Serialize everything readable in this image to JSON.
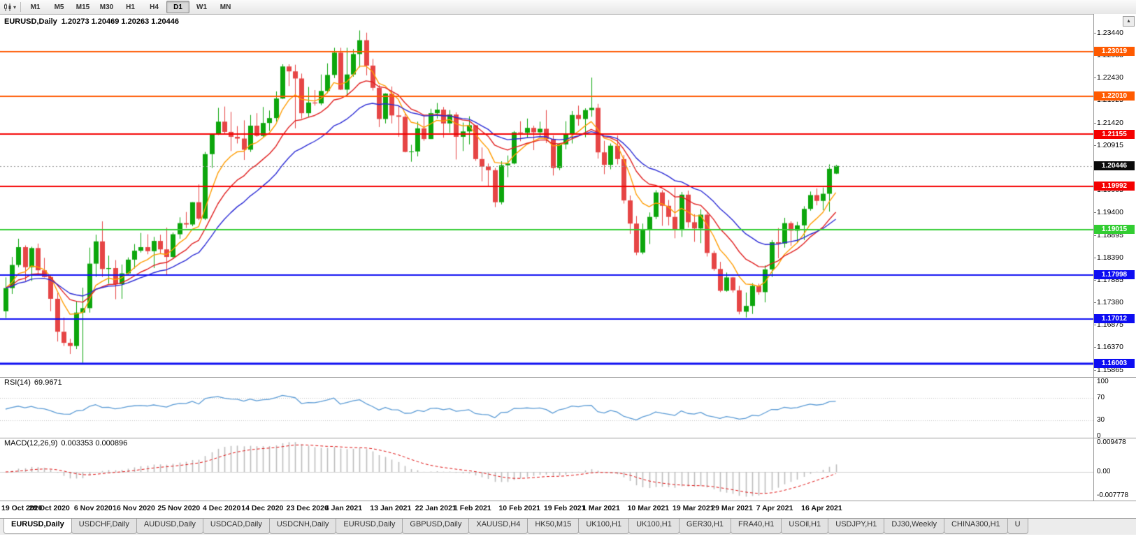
{
  "icons": {
    "dropdown": "▾",
    "scroll_up": "▴"
  },
  "toolbar": {
    "chart_icon": "candlestick-chart-icon",
    "timeframes": [
      "M1",
      "M5",
      "M15",
      "M30",
      "H1",
      "H4",
      "D1",
      "W1",
      "MN"
    ],
    "active_timeframe": "D1"
  },
  "main_chart": {
    "title": "EURUSD,Daily",
    "ohlc_text": "1.20273 1.20469 1.20263 1.20446",
    "current_price": {
      "text": "1.20446",
      "value": 1.20446,
      "box_color": "#0a0a0a"
    },
    "levels": [
      {
        "text": "1.23019",
        "value": 1.23019,
        "color": "#FF5A00",
        "width": 2
      },
      {
        "text": "1.22010",
        "value": 1.2201,
        "color": "#FF5A00",
        "width": 2
      },
      {
        "text": "1.21155",
        "value": 1.21155,
        "color": "#F40000",
        "width": 2
      },
      {
        "text": "1.19992",
        "value": 1.19992,
        "color": "#F40000",
        "width": 2
      },
      {
        "text": "1.19015",
        "value": 1.19015,
        "color": "#32CD32",
        "width": 2
      },
      {
        "text": "1.17998",
        "value": 1.17998,
        "color": "#0D0DF2",
        "width": 2
      },
      {
        "text": "1.17012",
        "value": 1.17012,
        "color": "#0D0DF2",
        "width": 2
      },
      {
        "text": "1.16003",
        "value": 1.16003,
        "color": "#0D0DF2",
        "width": 3
      }
    ],
    "y_ticks": [
      "1.23440",
      "1.22935",
      "1.22430",
      "1.21925",
      "1.21420",
      "1.20915",
      "1.20410",
      "1.19905",
      "1.19400",
      "1.18895",
      "1.18390",
      "1.17885",
      "1.17380",
      "1.16875",
      "1.16370",
      "1.15865"
    ],
    "x_labels": [
      {
        "text": "19 Oct 2020",
        "i": 0
      },
      {
        "text": "28 Oct 2020",
        "i": 7
      },
      {
        "text": "6 Nov 2020",
        "i": 14
      },
      {
        "text": "16 Nov 2020",
        "i": 20
      },
      {
        "text": "25 Nov 2020",
        "i": 27
      },
      {
        "text": "4 Dec 2020",
        "i": 34
      },
      {
        "text": "14 Dec 2020",
        "i": 40
      },
      {
        "text": "23 Dec 2020",
        "i": 47
      },
      {
        "text": "4 Jan 2021",
        "i": 53
      },
      {
        "text": "13 Jan 2021",
        "i": 60
      },
      {
        "text": "22 Jan 2021",
        "i": 67
      },
      {
        "text": "1 Feb 2021",
        "i": 73
      },
      {
        "text": "10 Feb 2021",
        "i": 80
      },
      {
        "text": "19 Feb 2021",
        "i": 87
      },
      {
        "text": "1 Mar 2021",
        "i": 93
      },
      {
        "text": "10 Mar 2021",
        "i": 100
      },
      {
        "text": "19 Mar 2021",
        "i": 107
      },
      {
        "text": "29 Mar 2021",
        "i": 113
      },
      {
        "text": "7 Apr 2021",
        "i": 120
      },
      {
        "text": "16 Apr 2021",
        "i": 127
      }
    ]
  },
  "rsi_panel": {
    "name": "RSI(14)",
    "value": "69.9671",
    "axis": [
      "100",
      "70",
      "30",
      "0"
    ],
    "level_lines": [
      70,
      30
    ],
    "line_color": "#5B9BD5"
  },
  "macd_panel": {
    "name": "MACD(12,26,9)",
    "values": "0.003353 0.000896",
    "axis": [
      {
        "text": "0.009478",
        "v": 0.009478
      },
      {
        "text": "0.00",
        "v": 0
      },
      {
        "text": "-0.007778",
        "v": -0.007778
      }
    ],
    "histogram_color": "#BDBDBD",
    "signal_color": "#DE1111"
  },
  "tabs": [
    "EURUSD,Daily",
    "USDCHF,Daily",
    "AUDUSD,Daily",
    "USDCAD,Daily",
    "USDCNH,Daily",
    "EURUSD,Daily",
    "GBPUSD,Daily",
    "XAUUSD,H4",
    "HK50,M15",
    "UK100,H1",
    "UK100,H1",
    "GER30,H1",
    "FRA40,H1",
    "USOil,H1",
    "USDJPY,H1",
    "DJ30,Weekly",
    "CHINA300,H1",
    "U"
  ],
  "active_tab": 0,
  "chart_data": {
    "type": "candlestick",
    "symbol": "EURUSD",
    "timeframe": "Daily",
    "ohlc_format": [
      "open",
      "high",
      "low",
      "close"
    ],
    "visible_price_range": [
      1.1575,
      1.239
    ],
    "up_color": "#0CA60C",
    "down_color": "#E64545",
    "moving_averages": [
      {
        "type": "ema",
        "period": 7,
        "color": "#FF9C00"
      },
      {
        "type": "ema",
        "period": 14,
        "color": "#E02020"
      },
      {
        "type": "ema",
        "period": 24,
        "color": "#2B2BD5"
      }
    ],
    "indicators": {
      "rsi_period": 14,
      "macd_params": [
        12,
        26,
        9
      ]
    },
    "candles": [
      [
        1.1718,
        1.1794,
        1.1703,
        1.177
      ],
      [
        1.177,
        1.184,
        1.1757,
        1.1822
      ],
      [
        1.1822,
        1.1881,
        1.1817,
        1.1862
      ],
      [
        1.1862,
        1.1866,
        1.1786,
        1.1817
      ],
      [
        1.1817,
        1.1863,
        1.1786,
        1.186
      ],
      [
        1.186,
        1.187,
        1.18,
        1.181
      ],
      [
        1.181,
        1.1838,
        1.1794,
        1.1795
      ],
      [
        1.1795,
        1.18,
        1.1718,
        1.1746
      ],
      [
        1.1746,
        1.1759,
        1.165,
        1.1672
      ],
      [
        1.1672,
        1.1704,
        1.164,
        1.1647
      ],
      [
        1.1647,
        1.1656,
        1.1622,
        1.164
      ],
      [
        1.164,
        1.174,
        1.1633,
        1.1715
      ],
      [
        1.1715,
        1.1771,
        1.1602,
        1.1725
      ],
      [
        1.1725,
        1.1861,
        1.1715,
        1.1825
      ],
      [
        1.1825,
        1.189,
        1.1795,
        1.1875
      ],
      [
        1.1875,
        1.192,
        1.1795,
        1.1813
      ],
      [
        1.1813,
        1.1843,
        1.178,
        1.1815
      ],
      [
        1.1815,
        1.1833,
        1.1745,
        1.1779
      ],
      [
        1.1779,
        1.1823,
        1.1746,
        1.1803
      ],
      [
        1.1803,
        1.1839,
        1.1799,
        1.1834
      ],
      [
        1.1834,
        1.1869,
        1.1814,
        1.1854
      ],
      [
        1.1854,
        1.1894,
        1.185,
        1.1862
      ],
      [
        1.1862,
        1.1891,
        1.1846,
        1.1853
      ],
      [
        1.1853,
        1.1885,
        1.1815,
        1.1876
      ],
      [
        1.1876,
        1.189,
        1.1848,
        1.1857
      ],
      [
        1.1857,
        1.1906,
        1.18,
        1.184
      ],
      [
        1.184,
        1.1895,
        1.1836,
        1.1891
      ],
      [
        1.1891,
        1.1929,
        1.1881,
        1.1916
      ],
      [
        1.1916,
        1.1941,
        1.1905,
        1.1913
      ],
      [
        1.1913,
        1.1963,
        1.1909,
        1.1963
      ],
      [
        1.1963,
        1.2003,
        1.1923,
        1.1926
      ],
      [
        1.1926,
        1.2076,
        1.1923,
        1.2071
      ],
      [
        1.2071,
        1.2117,
        1.204,
        1.2115
      ],
      [
        1.2115,
        1.2175,
        1.2114,
        1.2144
      ],
      [
        1.2144,
        1.2178,
        1.2115,
        1.2121
      ],
      [
        1.2121,
        1.2166,
        1.2078,
        1.211
      ],
      [
        1.211,
        1.2134,
        1.2095,
        1.2106
      ],
      [
        1.2106,
        1.2147,
        1.2058,
        1.2081
      ],
      [
        1.2081,
        1.2159,
        1.2076,
        1.2135
      ],
      [
        1.2135,
        1.2163,
        1.211,
        1.2112
      ],
      [
        1.2112,
        1.2177,
        1.211,
        1.2141
      ],
      [
        1.2141,
        1.2169,
        1.2123,
        1.2152
      ],
      [
        1.2152,
        1.2212,
        1.2144,
        1.2196
      ],
      [
        1.2196,
        1.2273,
        1.2195,
        1.2268
      ],
      [
        1.2268,
        1.2273,
        1.2224,
        1.2257
      ],
      [
        1.2257,
        1.2272,
        1.2129,
        1.2241
      ],
      [
        1.2241,
        1.2252,
        1.2151,
        1.2163
      ],
      [
        1.2163,
        1.2222,
        1.2154,
        1.2187
      ],
      [
        1.2187,
        1.2215,
        1.218,
        1.2185
      ],
      [
        1.2185,
        1.225,
        1.2181,
        1.2213
      ],
      [
        1.2213,
        1.2275,
        1.2208,
        1.2249
      ],
      [
        1.2249,
        1.231,
        1.2242,
        1.2299
      ],
      [
        1.2299,
        1.231,
        1.2215,
        1.2216
      ],
      [
        1.2216,
        1.231,
        1.22,
        1.225
      ],
      [
        1.225,
        1.2307,
        1.2245,
        1.2296
      ],
      [
        1.2296,
        1.2349,
        1.2266,
        1.2327
      ],
      [
        1.2327,
        1.2344,
        1.2248,
        1.227
      ],
      [
        1.227,
        1.2285,
        1.2214,
        1.222
      ],
      [
        1.222,
        1.2226,
        1.2132,
        1.215
      ],
      [
        1.215,
        1.2208,
        1.214,
        1.2207
      ],
      [
        1.2207,
        1.2223,
        1.214,
        1.2158
      ],
      [
        1.2158,
        1.218,
        1.211,
        1.2155
      ],
      [
        1.2155,
        1.2163,
        1.2075,
        1.2076
      ],
      [
        1.2076,
        1.2092,
        1.2054,
        1.2077
      ],
      [
        1.2077,
        1.2144,
        1.2066,
        1.2129
      ],
      [
        1.2129,
        1.2158,
        1.2101,
        1.2105
      ],
      [
        1.2105,
        1.2173,
        1.2105,
        1.2163
      ],
      [
        1.2163,
        1.2186,
        1.2151,
        1.2171
      ],
      [
        1.2171,
        1.2177,
        1.2108,
        1.214
      ],
      [
        1.214,
        1.217,
        1.2119,
        1.216
      ],
      [
        1.216,
        1.2165,
        1.2059,
        1.211
      ],
      [
        1.211,
        1.2142,
        1.2078,
        1.2122
      ],
      [
        1.2122,
        1.2156,
        1.2093,
        1.2136
      ],
      [
        1.2136,
        1.2136,
        1.2056,
        1.206
      ],
      [
        1.206,
        1.2086,
        1.201,
        1.2043
      ],
      [
        1.2043,
        1.205,
        1.1999,
        1.2035
      ],
      [
        1.2035,
        1.204,
        1.1952,
        1.1963
      ],
      [
        1.1963,
        1.2055,
        1.1958,
        1.2046
      ],
      [
        1.2046,
        1.2068,
        1.2019,
        1.205
      ],
      [
        1.205,
        1.2123,
        1.2048,
        1.212
      ],
      [
        1.212,
        1.2145,
        1.21,
        1.2119
      ],
      [
        1.2119,
        1.2151,
        1.2108,
        1.213
      ],
      [
        1.213,
        1.2135,
        1.208,
        1.212
      ],
      [
        1.212,
        1.2144,
        1.211,
        1.2128
      ],
      [
        1.2128,
        1.217,
        1.2096,
        1.2105
      ],
      [
        1.2105,
        1.2113,
        1.2023,
        1.204
      ],
      [
        1.204,
        1.2095,
        1.2035,
        1.2093
      ],
      [
        1.2093,
        1.2145,
        1.2082,
        1.2117
      ],
      [
        1.2117,
        1.2168,
        1.2095,
        1.2159
      ],
      [
        1.2159,
        1.218,
        1.2135,
        1.215
      ],
      [
        1.215,
        1.2174,
        1.2109,
        1.217
      ],
      [
        1.217,
        1.2243,
        1.2155,
        1.2175
      ],
      [
        1.2175,
        1.2184,
        1.2061,
        1.2075
      ],
      [
        1.2075,
        1.2101,
        1.2026,
        1.2047
      ],
      [
        1.2047,
        1.2095,
        1.2037,
        1.209
      ],
      [
        1.209,
        1.2113,
        1.2048,
        1.206
      ],
      [
        1.206,
        1.2069,
        1.196,
        1.1967
      ],
      [
        1.1967,
        1.1978,
        1.1892,
        1.1915
      ],
      [
        1.1915,
        1.1932,
        1.1844,
        1.185
      ],
      [
        1.185,
        1.1915,
        1.1846,
        1.19
      ],
      [
        1.19,
        1.194,
        1.1869,
        1.193
      ],
      [
        1.193,
        1.199,
        1.1925,
        1.1985
      ],
      [
        1.1985,
        1.199,
        1.191,
        1.1955
      ],
      [
        1.1955,
        1.1968,
        1.1911,
        1.193
      ],
      [
        1.193,
        1.1996,
        1.1882,
        1.19
      ],
      [
        1.19,
        1.1986,
        1.1885,
        1.198
      ],
      [
        1.198,
        1.1989,
        1.1906,
        1.1918
      ],
      [
        1.1918,
        1.1936,
        1.1874,
        1.1904
      ],
      [
        1.1904,
        1.1947,
        1.1871,
        1.1935
      ],
      [
        1.1935,
        1.194,
        1.1841,
        1.1849
      ],
      [
        1.1849,
        1.1854,
        1.1809,
        1.1813
      ],
      [
        1.1813,
        1.1829,
        1.1761,
        1.1764
      ],
      [
        1.1764,
        1.1805,
        1.1762,
        1.1794
      ],
      [
        1.1794,
        1.1795,
        1.176,
        1.1765
      ],
      [
        1.1765,
        1.1775,
        1.1711,
        1.1717
      ],
      [
        1.1717,
        1.176,
        1.1704,
        1.173
      ],
      [
        1.173,
        1.1781,
        1.1712,
        1.1775
      ],
      [
        1.1775,
        1.178,
        1.1755,
        1.1761
      ],
      [
        1.1761,
        1.1821,
        1.1738,
        1.1812
      ],
      [
        1.1812,
        1.1878,
        1.1795,
        1.1873
      ],
      [
        1.1873,
        1.1905,
        1.1837,
        1.187
      ],
      [
        1.187,
        1.1928,
        1.1861,
        1.1916
      ],
      [
        1.1916,
        1.192,
        1.1865,
        1.1899
      ],
      [
        1.1899,
        1.1919,
        1.1872,
        1.1911
      ],
      [
        1.1911,
        1.1954,
        1.1878,
        1.1948
      ],
      [
        1.1948,
        1.1987,
        1.1944,
        1.1979
      ],
      [
        1.1979,
        1.1994,
        1.1956,
        1.1966
      ],
      [
        1.1966,
        1.1996,
        1.1945,
        1.1982
      ],
      [
        1.1982,
        1.2048,
        1.1942,
        1.2038
      ],
      [
        1.20273,
        1.20469,
        1.20263,
        1.20446
      ]
    ]
  }
}
